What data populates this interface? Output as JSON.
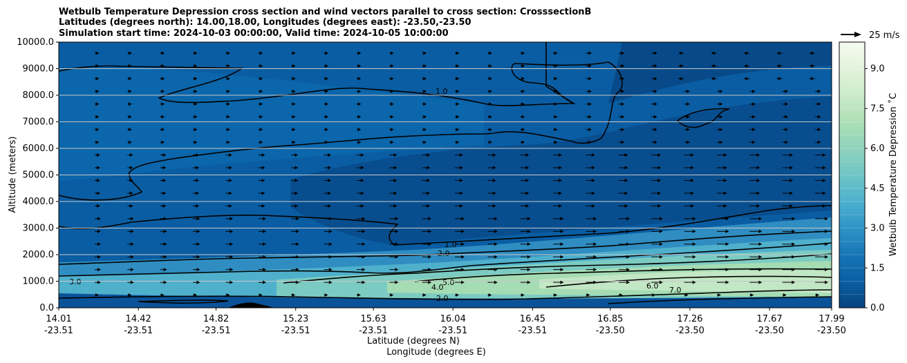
{
  "chart_data": {
    "type": "contourf",
    "title": [
      "Wetbulb Temperature Depression cross section and wind vectors parallel to cross section: CrosssectionB",
      "Latitudes (degrees north): 14.00,18.00, Longitudes (degrees east): -23.50,-23.50",
      "Simulation start time: 2024-10-03 00:00:00, Valid time: 2024-10-05 10:00:00"
    ],
    "ylabel": "Altitude (meters)",
    "xlabel_lat": "Latitude (degrees N)",
    "xlabel_lon": "Longitude (degrees E)",
    "ylim": [
      0,
      10000
    ],
    "yticks": [
      0,
      1000,
      2000,
      3000,
      4000,
      5000,
      6000,
      7000,
      8000,
      9000,
      10000
    ],
    "ytick_labels": [
      "0.0",
      "1000.0",
      "2000.0",
      "3000.0",
      "4000.0",
      "5000.0",
      "6000.0",
      "7000.0",
      "8000.0",
      "9000.0",
      "10000.0"
    ],
    "xlim_lat": [
      14.01,
      17.99
    ],
    "xticks": [
      {
        "lat": "14.01",
        "lon": "-23.51"
      },
      {
        "lat": "14.42",
        "lon": "-23.51"
      },
      {
        "lat": "14.82",
        "lon": "-23.51"
      },
      {
        "lat": "15.23",
        "lon": "-23.51"
      },
      {
        "lat": "15.63",
        "lon": "-23.51"
      },
      {
        "lat": "16.04",
        "lon": "-23.51"
      },
      {
        "lat": "16.45",
        "lon": "-23.51"
      },
      {
        "lat": "16.85",
        "lon": "-23.50"
      },
      {
        "lat": "17.26",
        "lon": "-23.50"
      },
      {
        "lat": "17.67",
        "lon": "-23.50"
      },
      {
        "lat": "17.99",
        "lon": "-23.50"
      }
    ],
    "colorbar": {
      "label": "Wetbulb Temperature Depression ˚C",
      "min": 0.0,
      "max": 10.0,
      "step": 0.5,
      "ticks": [
        0.0,
        1.5,
        3.0,
        4.5,
        6.0,
        7.5,
        9.0
      ],
      "tick_labels": [
        "0.0",
        "1.5",
        "3.0",
        "4.5",
        "6.0",
        "7.5",
        "9.0"
      ],
      "colormap": "GnBu_r"
    },
    "quiver_key": {
      "label": "25 m/s",
      "speed": 25
    },
    "contour_labels": [
      "1.0",
      "2.0",
      "3.0",
      "4.0",
      "5.0",
      "6.0",
      "7.0"
    ],
    "grid": true
  }
}
